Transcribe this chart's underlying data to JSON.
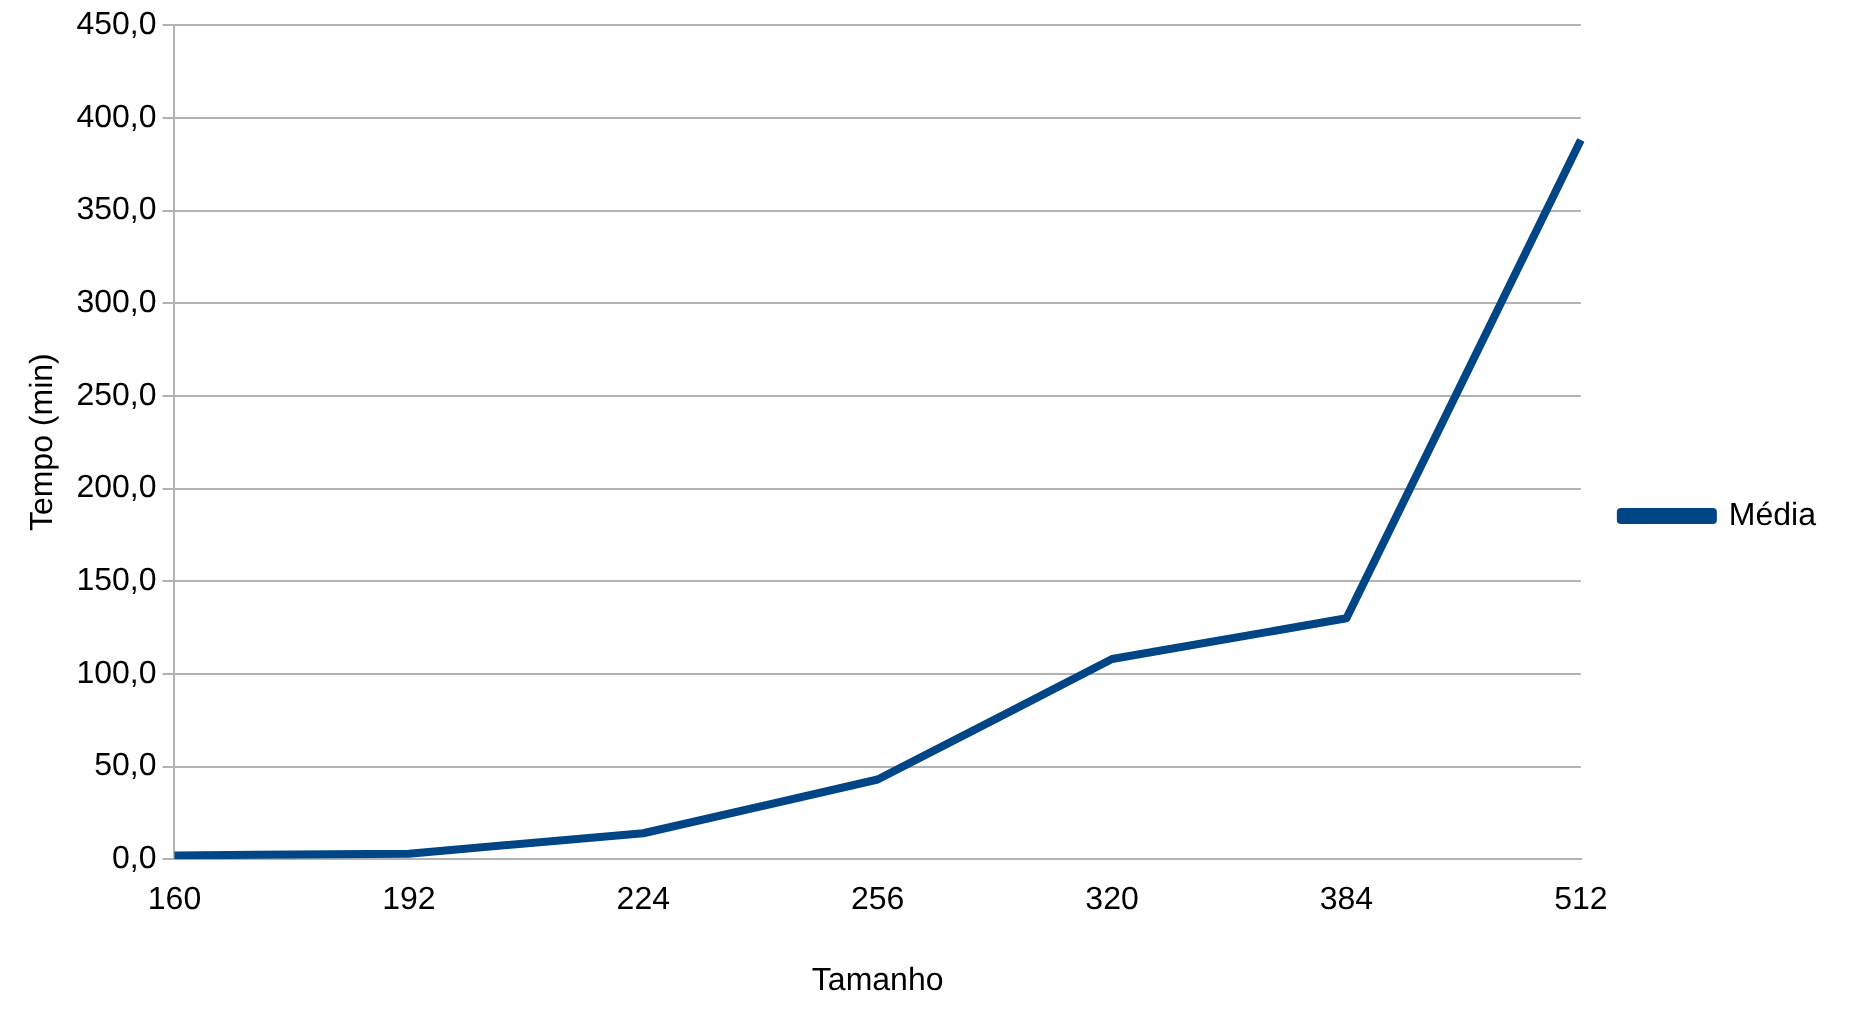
{
  "chart_data": {
    "type": "line",
    "xlabel": "Tamanho",
    "ylabel": "Tempo (min)",
    "categories": [
      "160",
      "192",
      "224",
      "256",
      "320",
      "384",
      "512"
    ],
    "series": [
      {
        "name": "Média",
        "color": "#004586",
        "values": [
          2,
          3,
          14,
          43,
          108,
          130,
          388
        ]
      }
    ],
    "ylim": [
      0,
      450
    ],
    "yticks": [
      {
        "value": 0,
        "label": "0,0"
      },
      {
        "value": 50,
        "label": "50,0"
      },
      {
        "value": 100,
        "label": "100,0"
      },
      {
        "value": 150,
        "label": "150,0"
      },
      {
        "value": 200,
        "label": "200,0"
      },
      {
        "value": 250,
        "label": "250,0"
      },
      {
        "value": 300,
        "label": "300,0"
      },
      {
        "value": 350,
        "label": "350,0"
      },
      {
        "value": 400,
        "label": "400,0"
      },
      {
        "value": 450,
        "label": "450,0"
      }
    ],
    "grid": "y",
    "legend": "right",
    "marker": "none",
    "line_style": "solid"
  }
}
